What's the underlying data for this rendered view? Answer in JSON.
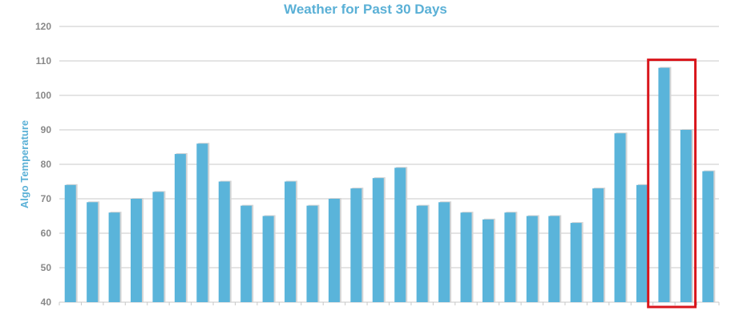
{
  "chart_data": {
    "type": "bar",
    "title": "Weather for Past 30 Days",
    "xlabel": "",
    "ylabel": "Algo Temperature",
    "ylim": [
      40,
      120
    ],
    "yticks": [
      40,
      50,
      60,
      70,
      80,
      90,
      100,
      110,
      120
    ],
    "grid": true,
    "values": [
      74,
      69,
      66,
      70,
      72,
      83,
      86,
      75,
      68,
      65,
      75,
      68,
      70,
      73,
      76,
      79,
      68,
      69,
      66,
      64,
      66,
      65,
      65,
      63,
      73,
      89,
      74,
      108,
      90,
      78
    ],
    "highlight": {
      "from_index": 27,
      "to_index": 28
    },
    "colors": {
      "bar": "#5ab4da",
      "bar_shadow": "#d4d4d4",
      "title": "#5ab0d6",
      "grid": "#c8c8c8",
      "highlight": "#d9161c"
    }
  }
}
